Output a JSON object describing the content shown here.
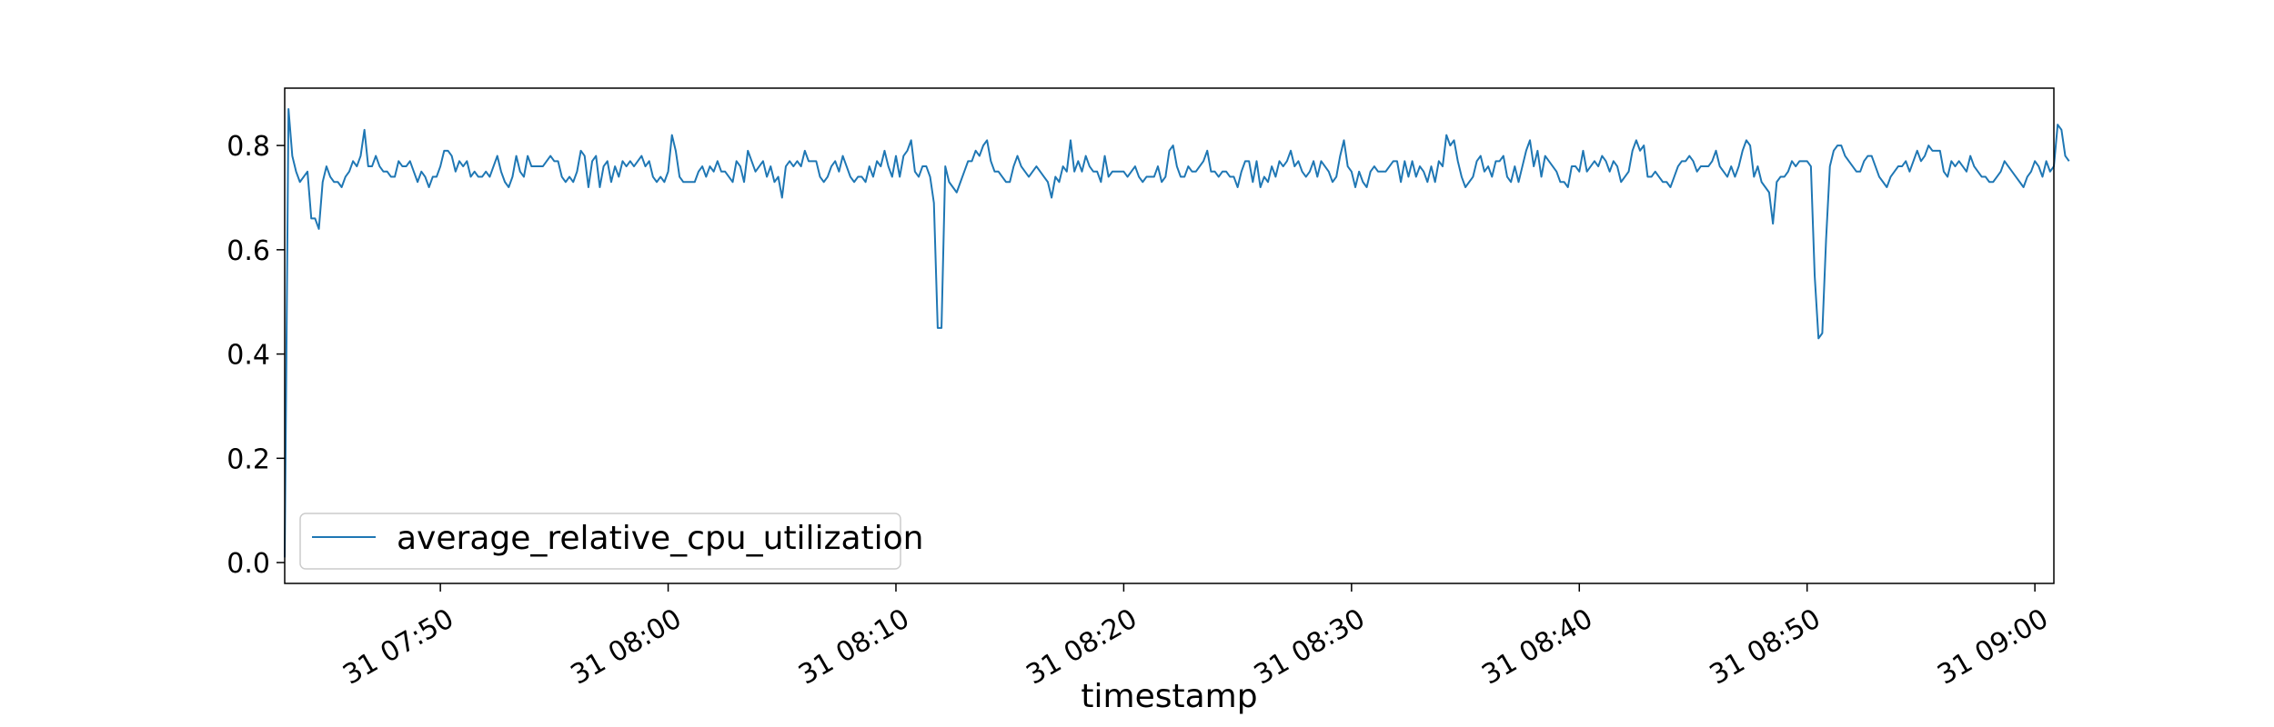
{
  "chart_data": {
    "type": "line",
    "title": "",
    "xlabel": "timestamp",
    "ylabel": "",
    "x_start": "07:43:10",
    "x_end": "09:00:50",
    "x_step_seconds": 10,
    "xlim": [
      "07:43:10",
      "09:00:50"
    ],
    "ylim": [
      -0.04,
      0.91
    ],
    "x_ticks": [
      {
        "time": "07:50:00",
        "label": "31 07:50"
      },
      {
        "time": "08:00:00",
        "label": "31 08:00"
      },
      {
        "time": "08:10:00",
        "label": "31 08:10"
      },
      {
        "time": "08:20:00",
        "label": "31 08:20"
      },
      {
        "time": "08:30:00",
        "label": "31 08:30"
      },
      {
        "time": "08:40:00",
        "label": "31 08:40"
      },
      {
        "time": "08:50:00",
        "label": "31 08:50"
      },
      {
        "time": "09:00:00",
        "label": "31 09:00"
      }
    ],
    "y_ticks": [
      {
        "value": 0.0,
        "label": "0.0"
      },
      {
        "value": 0.2,
        "label": "0.2"
      },
      {
        "value": 0.4,
        "label": "0.4"
      },
      {
        "value": 0.6,
        "label": "0.6"
      },
      {
        "value": 0.8,
        "label": "0.8"
      }
    ],
    "grid": false,
    "legend_position": "lower-left",
    "series": [
      {
        "name": "average_relative_cpu_utilization",
        "color": "#1f77b4",
        "values": [
          0.01,
          0.87,
          0.78,
          0.75,
          0.73,
          0.74,
          0.75,
          0.66,
          0.66,
          0.64,
          0.73,
          0.76,
          0.74,
          0.73,
          0.73,
          0.72,
          0.74,
          0.75,
          0.77,
          0.76,
          0.78,
          0.83,
          0.76,
          0.76,
          0.78,
          0.76,
          0.75,
          0.75,
          0.74,
          0.74,
          0.77,
          0.76,
          0.76,
          0.77,
          0.75,
          0.73,
          0.75,
          0.74,
          0.72,
          0.74,
          0.74,
          0.76,
          0.79,
          0.79,
          0.78,
          0.75,
          0.77,
          0.76,
          0.77,
          0.74,
          0.75,
          0.74,
          0.74,
          0.75,
          0.74,
          0.76,
          0.78,
          0.75,
          0.73,
          0.72,
          0.74,
          0.78,
          0.75,
          0.74,
          0.78,
          0.76,
          0.76,
          0.76,
          0.76,
          0.77,
          0.78,
          0.77,
          0.77,
          0.74,
          0.73,
          0.74,
          0.73,
          0.75,
          0.79,
          0.78,
          0.72,
          0.77,
          0.78,
          0.72,
          0.76,
          0.77,
          0.73,
          0.76,
          0.74,
          0.77,
          0.76,
          0.77,
          0.76,
          0.77,
          0.78,
          0.76,
          0.77,
          0.74,
          0.73,
          0.74,
          0.73,
          0.75,
          0.82,
          0.79,
          0.74,
          0.73,
          0.73,
          0.73,
          0.73,
          0.75,
          0.76,
          0.74,
          0.76,
          0.75,
          0.77,
          0.75,
          0.75,
          0.74,
          0.73,
          0.77,
          0.76,
          0.73,
          0.79,
          0.77,
          0.75,
          0.76,
          0.77,
          0.74,
          0.76,
          0.73,
          0.74,
          0.7,
          0.76,
          0.77,
          0.76,
          0.77,
          0.76,
          0.79,
          0.77,
          0.77,
          0.77,
          0.74,
          0.73,
          0.74,
          0.76,
          0.77,
          0.75,
          0.78,
          0.76,
          0.74,
          0.73,
          0.74,
          0.74,
          0.73,
          0.76,
          0.74,
          0.77,
          0.76,
          0.79,
          0.76,
          0.74,
          0.78,
          0.74,
          0.78,
          0.79,
          0.81,
          0.75,
          0.74,
          0.76,
          0.76,
          0.74,
          0.69,
          0.45,
          0.45,
          0.76,
          0.73,
          0.72,
          0.71,
          0.73,
          0.75,
          0.77,
          0.77,
          0.79,
          0.78,
          0.8,
          0.81,
          0.77,
          0.75,
          0.75,
          0.74,
          0.73,
          0.73,
          0.76,
          0.78,
          0.76,
          0.75,
          0.74,
          0.75,
          0.76,
          0.75,
          0.74,
          0.73,
          0.7,
          0.74,
          0.73,
          0.76,
          0.75,
          0.81,
          0.75,
          0.77,
          0.75,
          0.78,
          0.76,
          0.75,
          0.75,
          0.73,
          0.78,
          0.74,
          0.75,
          0.75,
          0.75,
          0.75,
          0.74,
          0.75,
          0.76,
          0.74,
          0.73,
          0.74,
          0.74,
          0.74,
          0.76,
          0.73,
          0.74,
          0.79,
          0.8,
          0.76,
          0.74,
          0.74,
          0.76,
          0.75,
          0.75,
          0.76,
          0.77,
          0.79,
          0.75,
          0.75,
          0.74,
          0.75,
          0.75,
          0.74,
          0.74,
          0.72,
          0.75,
          0.77,
          0.77,
          0.73,
          0.77,
          0.72,
          0.74,
          0.73,
          0.76,
          0.74,
          0.77,
          0.76,
          0.77,
          0.79,
          0.76,
          0.77,
          0.75,
          0.74,
          0.75,
          0.77,
          0.74,
          0.77,
          0.76,
          0.75,
          0.73,
          0.74,
          0.78,
          0.81,
          0.76,
          0.75,
          0.72,
          0.75,
          0.73,
          0.72,
          0.75,
          0.76,
          0.75,
          0.75,
          0.75,
          0.76,
          0.77,
          0.77,
          0.73,
          0.77,
          0.74,
          0.77,
          0.74,
          0.76,
          0.75,
          0.73,
          0.76,
          0.73,
          0.77,
          0.76,
          0.82,
          0.8,
          0.81,
          0.77,
          0.74,
          0.72,
          0.73,
          0.74,
          0.77,
          0.78,
          0.75,
          0.76,
          0.74,
          0.77,
          0.77,
          0.78,
          0.74,
          0.73,
          0.76,
          0.73,
          0.76,
          0.79,
          0.81,
          0.76,
          0.79,
          0.74,
          0.78,
          0.77,
          0.76,
          0.75,
          0.73,
          0.73,
          0.72,
          0.76,
          0.76,
          0.75,
          0.79,
          0.75,
          0.76,
          0.77,
          0.76,
          0.78,
          0.77,
          0.75,
          0.77,
          0.76,
          0.73,
          0.74,
          0.75,
          0.79,
          0.81,
          0.79,
          0.8,
          0.74,
          0.74,
          0.75,
          0.74,
          0.73,
          0.73,
          0.72,
          0.74,
          0.76,
          0.77,
          0.77,
          0.78,
          0.77,
          0.75,
          0.76,
          0.76,
          0.76,
          0.77,
          0.79,
          0.76,
          0.75,
          0.74,
          0.76,
          0.74,
          0.76,
          0.79,
          0.81,
          0.8,
          0.74,
          0.76,
          0.73,
          0.72,
          0.71,
          0.65,
          0.73,
          0.74,
          0.74,
          0.75,
          0.77,
          0.76,
          0.77,
          0.77,
          0.77,
          0.76,
          0.55,
          0.43,
          0.44,
          0.62,
          0.76,
          0.79,
          0.8,
          0.8,
          0.78,
          0.77,
          0.76,
          0.75,
          0.75,
          0.77,
          0.78,
          0.78,
          0.76,
          0.74,
          0.73,
          0.72,
          0.74,
          0.75,
          0.76,
          0.76,
          0.77,
          0.75,
          0.77,
          0.79,
          0.77,
          0.78,
          0.8,
          0.79,
          0.79,
          0.79,
          0.75,
          0.74,
          0.77,
          0.76,
          0.77,
          0.76,
          0.75,
          0.78,
          0.76,
          0.75,
          0.74,
          0.74,
          0.73,
          0.73,
          0.74,
          0.75,
          0.77,
          0.76,
          0.75,
          0.74,
          0.73,
          0.72,
          0.74,
          0.75,
          0.77,
          0.76,
          0.74,
          0.77,
          0.75,
          0.76,
          0.84,
          0.83,
          0.78,
          0.77
        ]
      }
    ]
  }
}
